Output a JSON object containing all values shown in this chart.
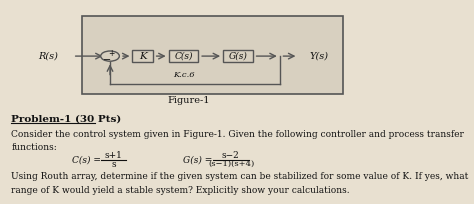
{
  "background_color": "#e8e0d0",
  "figure_caption": "Figure-1",
  "problem_title": "Problem-1 (30 Pts)",
  "body_text_line1": "Consider the control system given in Figure-1. Given the following controller and process transfer",
  "body_text_line2": "functions:",
  "cs_num": "s+1",
  "cs_den": "s",
  "gs_num": "s−2",
  "gs_den": "(s−1)(s+4)",
  "footer_line1": "Using Routh array, determine if the given system can be stabilized for some value of K. If yes, what",
  "footer_line2": "range of K would yield a stable system? Explicitly show your calculations.",
  "diagram_Rs": "R(s)",
  "diagram_K": "K",
  "diagram_Cs": "C(s)",
  "diagram_Gs": "G(s)",
  "diagram_Ys": "Y(s)",
  "diagram_Kc6": "K.c.6",
  "diagram_plus": "+",
  "diagram_minus": "−",
  "text_color": "#111111",
  "line_color": "#555555",
  "box_face": "#d8d0c0"
}
